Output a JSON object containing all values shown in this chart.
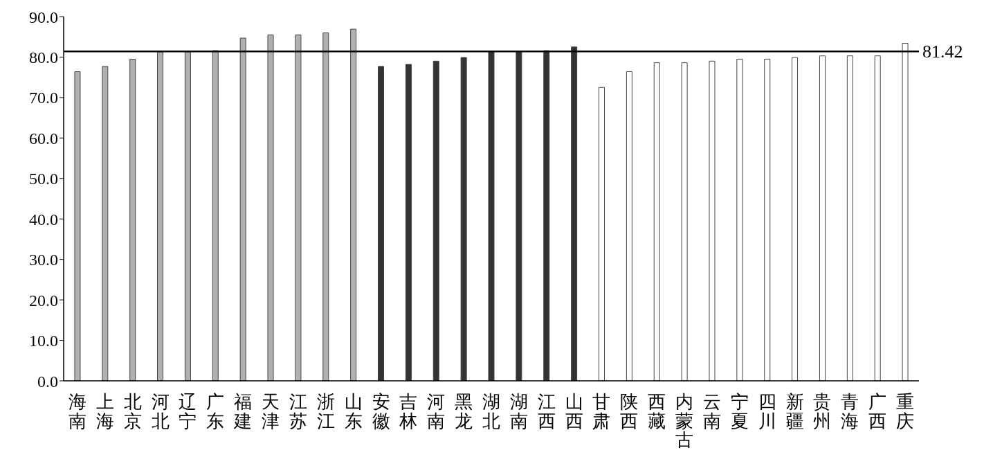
{
  "chart_data": {
    "type": "bar",
    "categories": [
      "海南",
      "上海",
      "北京",
      "河北",
      "辽宁",
      "广东",
      "福建",
      "天津",
      "江苏",
      "浙江",
      "山东",
      "安徽",
      "吉林",
      "河南",
      "黑龙",
      "湖北",
      "湖南",
      "江西",
      "山西",
      "甘肃",
      "陕西",
      "西藏",
      "内蒙古",
      "云南",
      "宁夏",
      "四川",
      "新疆",
      "贵州",
      "青海",
      "广西",
      "重庆"
    ],
    "values": [
      76.4,
      77.7,
      79.5,
      81.3,
      81.3,
      81.6,
      84.7,
      85.5,
      85.5,
      86.0,
      86.9,
      77.7,
      78.2,
      79.0,
      79.9,
      81.3,
      81.3,
      81.6,
      82.5,
      72.5,
      76.4,
      78.6,
      78.6,
      79.0,
      79.5,
      79.5,
      79.9,
      80.3,
      80.3,
      80.3,
      83.4
    ],
    "colors": [
      "#b0b0b0",
      "#b0b0b0",
      "#b0b0b0",
      "#b0b0b0",
      "#b0b0b0",
      "#b0b0b0",
      "#b0b0b0",
      "#b0b0b0",
      "#b0b0b0",
      "#b0b0b0",
      "#b0b0b0",
      "#333333",
      "#333333",
      "#333333",
      "#333333",
      "#333333",
      "#333333",
      "#333333",
      "#333333",
      "#ffffff",
      "#ffffff",
      "#ffffff",
      "#ffffff",
      "#ffffff",
      "#ffffff",
      "#ffffff",
      "#ffffff",
      "#ffffff",
      "#ffffff",
      "#ffffff",
      "#ffffff"
    ],
    "ylim": [
      0,
      90
    ],
    "yticks": [
      {
        "value": 0,
        "label": "0.0"
      },
      {
        "value": 10,
        "label": "10.0"
      },
      {
        "value": 20,
        "label": "20.0"
      },
      {
        "value": 30,
        "label": "30.0"
      },
      {
        "value": 40,
        "label": "40.0"
      },
      {
        "value": 50,
        "label": "50.0"
      },
      {
        "value": 60,
        "label": "60.0"
      },
      {
        "value": 70,
        "label": "70.0"
      },
      {
        "value": 80,
        "label": "80.0"
      },
      {
        "value": 90,
        "label": "90.0"
      }
    ],
    "ref_lines": [
      {
        "axis": "y",
        "value": 81.42,
        "label": "81.42",
        "color": "#000000"
      }
    ],
    "grid": false,
    "legend": false
  }
}
